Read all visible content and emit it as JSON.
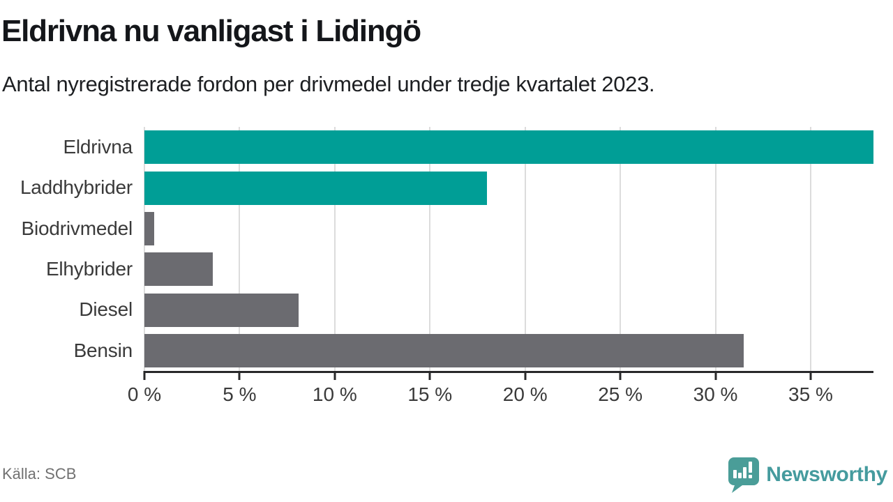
{
  "header": {
    "title": "Eldrivna nu vanligast i Lidingö",
    "subtitle": "Antal nyregistrerade fordon per drivmedel under tredje kvartalet 2023."
  },
  "footer": {
    "source": "Källa: SCB",
    "brand_name": "Newsworthy",
    "brand_icon": "bar-chart-speech-bubble-icon"
  },
  "colors": {
    "accent_teal": "#009e96",
    "bar_gray": "#6b6b70",
    "brand_teal": "#4a9d98",
    "gridline": "#dcdcdc",
    "axis": "#28282a",
    "label_gray": "#3a3a3a",
    "source_gray": "#717171"
  },
  "chart_data": {
    "type": "bar",
    "orientation": "horizontal",
    "title": "Eldrivna nu vanligast i Lidingö",
    "subtitle": "Antal nyregistrerade fordon per drivmedel under tredje kvartalet 2023.",
    "categories": [
      "Eldrivna",
      "Laddhybrider",
      "Biodrivmedel",
      "Elhybrider",
      "Diesel",
      "Bensin"
    ],
    "values": [
      38.3,
      18.0,
      0.5,
      3.6,
      8.1,
      31.5
    ],
    "unit": "%",
    "bar_colors": [
      "#009e96",
      "#009e96",
      "#6b6b70",
      "#6b6b70",
      "#6b6b70",
      "#6b6b70"
    ],
    "xlim": [
      0,
      38.3
    ],
    "x_ticks": [
      0,
      5,
      10,
      15,
      20,
      25,
      30,
      35
    ],
    "x_tick_labels": [
      "0 %",
      "5 %",
      "10 %",
      "15 %",
      "20 %",
      "25 %",
      "30 %",
      "35 %"
    ],
    "grid": "vertical",
    "legend": "none",
    "source": "Källa: SCB"
  }
}
